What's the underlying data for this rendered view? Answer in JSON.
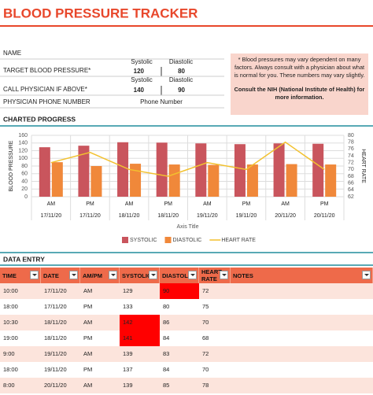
{
  "header": {
    "title": "BLOOD PRESSURE TRACKER"
  },
  "form": {
    "name_label": "NAME",
    "systolic_label": "Systolic",
    "diastolic_label": "Diastolic",
    "target_label": "TARGET BLOOD PRESSURE*",
    "target_systolic": 120,
    "target_diastolic": 80,
    "call_label": "CALL PHYSICIAN IF ABOVE*",
    "call_systolic": 140,
    "call_diastolic": 90,
    "phone_label": "PHYSICIAN PHONE NUMBER",
    "phone_value": "Phone Number"
  },
  "note": {
    "text": "* Blood pressures may vary dependent on many factors.  Always consult with a physician about what is normal for you. These numbers may vary slightly.",
    "bold": "Consult the NIH (National Institute of Health) for more information."
  },
  "chart_heading": "CHARTED PROGRESS",
  "chart_data": {
    "type": "bar",
    "categories": [
      "AM",
      "PM",
      "AM",
      "PM",
      "AM",
      "PM",
      "AM",
      "PM"
    ],
    "category_dates": [
      "17/11/20",
      "17/11/20",
      "18/11/20",
      "18/11/20",
      "19/11/20",
      "19/11/20",
      "20/11/20",
      "20/11/20"
    ],
    "xlabel": "Axis Title",
    "ylabel": "BLOOD PRESSURE",
    "y2label": "HEART RATE",
    "ylim": [
      0,
      160
    ],
    "yticks": [
      0,
      20,
      40,
      60,
      80,
      100,
      120,
      140,
      160
    ],
    "y2lim": [
      62,
      80
    ],
    "y2ticks": [
      62,
      64,
      66,
      68,
      70,
      72,
      74,
      76,
      78,
      80
    ],
    "grid": true,
    "legend": "bottom",
    "series": [
      {
        "name": "SYSTOLIC",
        "color": "#c9555d",
        "values": [
          129,
          133,
          142,
          141,
          139,
          137,
          139,
          138
        ]
      },
      {
        "name": "DIASTOLIC",
        "color": "#f0883a",
        "values": [
          90,
          80,
          86,
          84,
          83,
          84,
          85,
          84
        ]
      },
      {
        "name": "HEART RATE",
        "color": "#f2c12e",
        "type": "line",
        "axis": "y2",
        "values": [
          72,
          75,
          70,
          68,
          72,
          70,
          78,
          70
        ]
      }
    ]
  },
  "table": {
    "title": "DATA ENTRY",
    "columns": [
      "TIME",
      "DATE",
      "AM/PM",
      "SYSTOLIC",
      "DIASTOLIC",
      "HEART RATE",
      "NOTES"
    ],
    "rows": [
      [
        "10:00",
        "17/11/20",
        "AM",
        "129",
        "90",
        "72"
      ],
      [
        "18:00",
        "17/11/20",
        "PM",
        "133",
        "80",
        "75"
      ],
      [
        "10:30",
        "18/11/20",
        "AM",
        "142",
        "86",
        "70"
      ],
      [
        "19:00",
        "18/11/20",
        "PM",
        "141",
        "84",
        "68"
      ],
      [
        "9:00",
        "19/11/20",
        "AM",
        "139",
        "83",
        "72"
      ],
      [
        "18:00",
        "19/11/20",
        "PM",
        "137",
        "84",
        "70"
      ],
      [
        "8:00",
        "20/11/20",
        "AM",
        "139",
        "85",
        "78"
      ]
    ]
  }
}
